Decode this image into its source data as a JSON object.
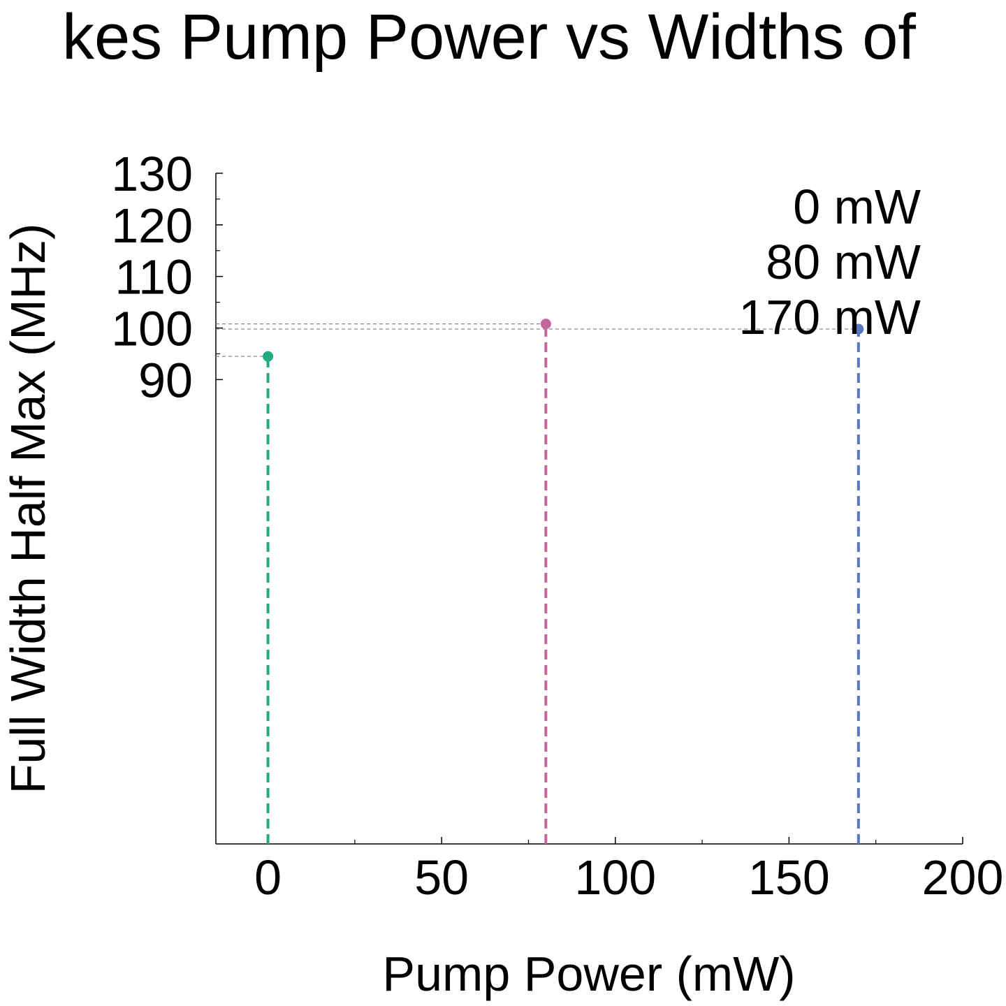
{
  "chart_data": {
    "type": "scatter",
    "title": "kes Pump Power vs Widths of",
    "xlabel": "Pump Power (mW)",
    "ylabel": "Full Width Half Max (MHz)",
    "xlim": [
      -15,
      200
    ],
    "ylim": [
      0,
      130
    ],
    "xticks": [
      0,
      50,
      100,
      150,
      200
    ],
    "xtick_labels": [
      "0",
      "50",
      "100",
      "150",
      "200"
    ],
    "xminor_ticks": [
      25,
      75,
      125,
      175
    ],
    "yticks": [
      90,
      100,
      110,
      120,
      130
    ],
    "ytick_labels": [
      "90",
      "100",
      "110",
      "120",
      "130"
    ],
    "yminor_ticks": [
      95,
      105,
      115,
      125
    ],
    "grid": false,
    "legend_position": "top-right",
    "legend_entries": [
      "0 mW",
      "80 mW",
      "170 mW"
    ],
    "series": [
      {
        "name": "0 mW",
        "x": [
          0
        ],
        "y": [
          94.5
        ],
        "color": "#22a884"
      },
      {
        "name": "80 mW",
        "x": [
          80
        ],
        "y": [
          100.8
        ],
        "color": "#c5669a"
      },
      {
        "name": "170 mW",
        "x": [
          170
        ],
        "y": [
          99.8
        ],
        "color": "#5a78c0"
      }
    ],
    "reference_line_color": "#888888"
  }
}
